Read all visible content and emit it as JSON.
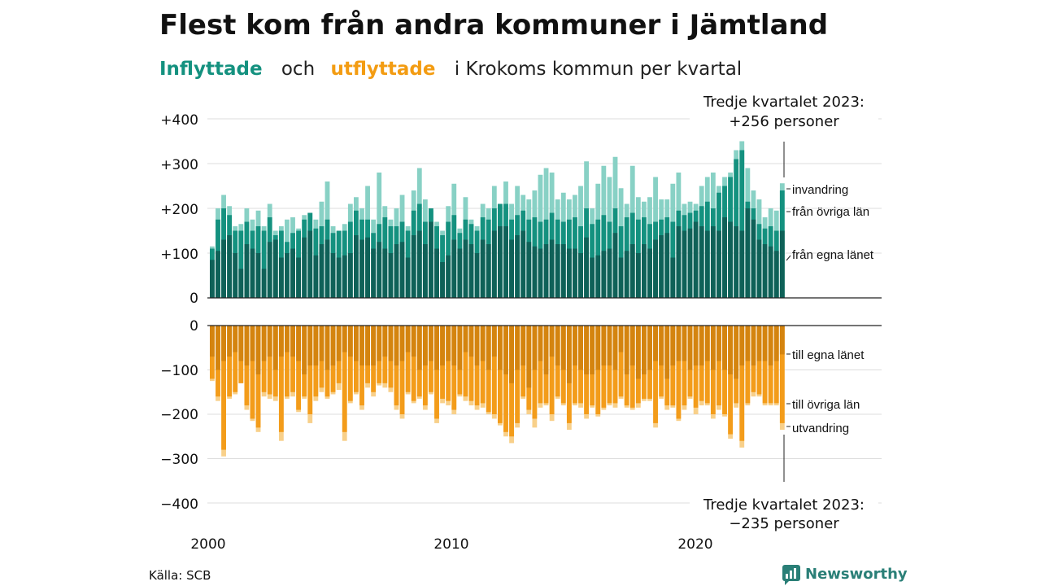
{
  "header": {
    "title": "Flest kom från andra kommuner i Jämtland",
    "subtitle_in": "Inflyttade",
    "subtitle_and": "och",
    "subtitle_out": "utflyttade",
    "subtitle_rest": "i Krokoms kommun per kvartal"
  },
  "annotations": {
    "top_line1": "Tredje kvartalet 2023:",
    "top_line2": "+256 personer",
    "bottom_line1": "Tredje kvartalet 2023:",
    "bottom_line2": "−235 personer"
  },
  "source": "Källa: SCB",
  "brand": "Newsworthy",
  "colors": {
    "in_own_county": "#0f6158",
    "in_other_counties": "#14917f",
    "in_immigration": "#88d1c5",
    "out_own_county": "#d4840f",
    "out_other_counties": "#f39c1a",
    "out_emigration": "#f8d08a",
    "grid": "#dddddd"
  },
  "chart_data": {
    "type": "bar",
    "stacked": true,
    "x_ticks": [
      "2000",
      "2010",
      "2020"
    ],
    "y_ticks_top": [
      "+400",
      "+200",
      "+100",
      "0"
    ],
    "y_ticks_top_values": [
      400,
      200,
      100,
      0
    ],
    "y_tick_plus300": "+300",
    "y_ticks_bottom": [
      "0",
      "−100",
      "−200",
      "−300",
      "−400"
    ],
    "y_ticks_bottom_values": [
      0,
      -100,
      -200,
      -300,
      -400
    ],
    "ylim_top": [
      0,
      400
    ],
    "ylim_bottom": [
      -400,
      0
    ],
    "legend_in": [
      "invandring",
      "från övriga län",
      "från egna länet"
    ],
    "legend_out": [
      "till egna länet",
      "till övriga län",
      "utvandring"
    ],
    "quarters_start": "2000 Q1",
    "inflow": {
      "own_county": [
        85,
        105,
        130,
        140,
        100,
        65,
        120,
        110,
        100,
        65,
        125,
        130,
        90,
        100,
        110,
        90,
        135,
        150,
        95,
        120,
        130,
        100,
        90,
        95,
        100,
        140,
        130,
        135,
        110,
        125,
        110,
        100,
        120,
        125,
        90,
        140,
        150,
        120,
        170,
        110,
        80,
        95,
        130,
        110,
        130,
        120,
        100,
        130,
        120,
        150,
        160,
        160,
        130,
        140,
        150,
        125,
        115,
        110,
        120,
        130,
        120,
        120,
        110,
        110,
        100,
        135,
        90,
        95,
        105,
        110,
        145,
        90,
        105,
        120,
        100,
        120,
        110,
        130,
        140,
        145,
        90,
        160,
        150,
        155,
        170,
        160,
        150,
        160,
        150,
        180,
        170,
        160,
        150,
        200,
        175,
        130,
        120,
        115,
        105,
        150
      ],
      "other_counties": [
        110,
        175,
        200,
        185,
        150,
        150,
        170,
        150,
        160,
        150,
        180,
        140,
        150,
        125,
        145,
        150,
        175,
        190,
        155,
        160,
        175,
        145,
        150,
        150,
        170,
        195,
        175,
        175,
        145,
        165,
        180,
        160,
        160,
        170,
        150,
        195,
        210,
        170,
        200,
        160,
        140,
        170,
        185,
        145,
        175,
        165,
        150,
        180,
        175,
        200,
        210,
        210,
        175,
        185,
        195,
        175,
        180,
        170,
        175,
        190,
        175,
        170,
        175,
        180,
        160,
        200,
        165,
        175,
        185,
        170,
        200,
        160,
        180,
        190,
        175,
        180,
        165,
        170,
        175,
        180,
        170,
        195,
        185,
        190,
        195,
        205,
        215,
        200,
        235,
        250,
        270,
        310,
        330,
        215,
        200,
        165,
        155,
        160,
        150,
        240
      ],
      "immigration": [
        115,
        200,
        230,
        205,
        160,
        165,
        200,
        175,
        195,
        160,
        210,
        150,
        160,
        175,
        180,
        155,
        185,
        190,
        175,
        215,
        260,
        160,
        150,
        165,
        210,
        225,
        200,
        250,
        175,
        280,
        205,
        175,
        200,
        230,
        160,
        240,
        290,
        220,
        195,
        170,
        150,
        205,
        255,
        155,
        225,
        175,
        160,
        210,
        200,
        250,
        205,
        260,
        210,
        250,
        230,
        220,
        240,
        275,
        290,
        280,
        220,
        235,
        220,
        230,
        250,
        305,
        200,
        255,
        295,
        270,
        315,
        245,
        210,
        295,
        225,
        215,
        225,
        270,
        220,
        220,
        255,
        280,
        210,
        215,
        210,
        250,
        270,
        280,
        250,
        270,
        280,
        330,
        350,
        290,
        240,
        220,
        180,
        200,
        195,
        256
      ]
    },
    "outflow": {
      "own_county": [
        -70,
        -100,
        -80,
        -70,
        -60,
        -80,
        -90,
        -80,
        -110,
        -80,
        -70,
        -100,
        -70,
        -60,
        -70,
        -80,
        -110,
        -90,
        -90,
        -80,
        -100,
        -90,
        -80,
        -60,
        -70,
        -80,
        -90,
        -90,
        -90,
        -80,
        -70,
        -80,
        -90,
        -80,
        -60,
        -70,
        -100,
        -90,
        -80,
        -100,
        -90,
        -80,
        -90,
        -100,
        -60,
        -70,
        -90,
        -80,
        -100,
        -70,
        -100,
        -110,
        -130,
        -100,
        -90,
        -140,
        -100,
        -80,
        -110,
        -70,
        -90,
        -100,
        -130,
        -90,
        -100,
        -110,
        -110,
        -100,
        -90,
        -90,
        -100,
        -60,
        -110,
        -90,
        -120,
        -110,
        -100,
        -80,
        -90,
        -120,
        -90,
        -80,
        -80,
        -100,
        -90,
        -90,
        -80,
        -100,
        -80,
        -100,
        -110,
        -120,
        -90,
        -80,
        -90,
        -80,
        -80,
        -90,
        -80,
        -65
      ],
      "other_counties": [
        -120,
        -160,
        -280,
        -160,
        -150,
        -130,
        -180,
        -210,
        -230,
        -150,
        -155,
        -160,
        -240,
        -160,
        -150,
        -190,
        -160,
        -200,
        -160,
        -140,
        -160,
        -150,
        -130,
        -240,
        -170,
        -150,
        -180,
        -130,
        -150,
        -130,
        -130,
        -140,
        -180,
        -200,
        -150,
        -170,
        -160,
        -180,
        -150,
        -210,
        -165,
        -170,
        -190,
        -155,
        -160,
        -170,
        -180,
        -175,
        -195,
        -200,
        -220,
        -240,
        -250,
        -220,
        -160,
        -190,
        -210,
        -175,
        -175,
        -200,
        -160,
        -175,
        -220,
        -175,
        -175,
        -200,
        -180,
        -200,
        -185,
        -175,
        -175,
        -160,
        -180,
        -185,
        -175,
        -165,
        -165,
        -220,
        -160,
        -180,
        -180,
        -210,
        -180,
        -160,
        -185,
        -170,
        -175,
        -200,
        -180,
        -200,
        -245,
        -175,
        -260,
        -175,
        -150,
        -155,
        -175,
        -175,
        -175,
        -220
      ],
      "emigration": [
        -125,
        -170,
        -295,
        -165,
        -155,
        -130,
        -190,
        -215,
        -240,
        -160,
        -165,
        -170,
        -260,
        -165,
        -160,
        -195,
        -165,
        -220,
        -170,
        -150,
        -165,
        -155,
        -145,
        -260,
        -175,
        -155,
        -190,
        -140,
        -160,
        -135,
        -140,
        -150,
        -190,
        -210,
        -155,
        -175,
        -165,
        -190,
        -155,
        -220,
        -175,
        -180,
        -200,
        -160,
        -170,
        -180,
        -190,
        -185,
        -200,
        -210,
        -225,
        -250,
        -265,
        -230,
        -165,
        -200,
        -230,
        -185,
        -180,
        -215,
        -165,
        -180,
        -235,
        -180,
        -185,
        -210,
        -185,
        -205,
        -190,
        -180,
        -185,
        -165,
        -185,
        -190,
        -185,
        -170,
        -170,
        -230,
        -165,
        -190,
        -185,
        -215,
        -190,
        -165,
        -200,
        -180,
        -180,
        -210,
        -190,
        -205,
        -255,
        -185,
        -275,
        -180,
        -160,
        -160,
        -180,
        -180,
        -180,
        -235
      ]
    }
  }
}
